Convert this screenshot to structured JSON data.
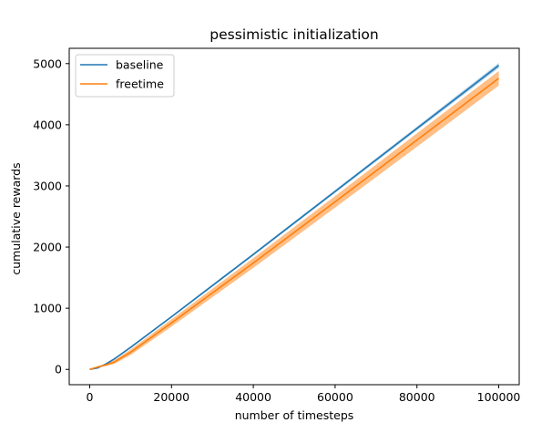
{
  "chart_data": {
    "type": "line",
    "title": "pessimistic initialization",
    "xlabel": "number of timesteps",
    "ylabel": "cumulative rewards",
    "xlim": [
      -5000,
      105000
    ],
    "ylim": [
      -250,
      5250
    ],
    "xticks": [
      0,
      20000,
      40000,
      60000,
      80000,
      100000
    ],
    "xtick_labels": [
      "0",
      "20000",
      "40000",
      "60000",
      "80000",
      "100000"
    ],
    "yticks": [
      0,
      1000,
      2000,
      3000,
      4000,
      5000
    ],
    "ytick_labels": [
      "0",
      "1000",
      "2000",
      "3000",
      "4000",
      "5000"
    ],
    "grid": false,
    "legend_position": "top-left",
    "series": [
      {
        "name": "baseline",
        "color": "#1f77b4",
        "x": [
          0,
          2000,
          4000,
          6000,
          10000,
          20000,
          40000,
          60000,
          80000,
          100000
        ],
        "y": [
          0,
          25,
          90,
          170,
          360,
          860,
          1880,
          2910,
          3940,
          4970
        ],
        "lower": [
          0,
          20,
          80,
          158,
          345,
          845,
          1860,
          2885,
          3910,
          4930
        ],
        "upper": [
          0,
          30,
          100,
          182,
          375,
          875,
          1900,
          2935,
          3970,
          5010
        ]
      },
      {
        "name": "freetime",
        "color": "#ff7f0e",
        "x": [
          0,
          2000,
          4000,
          6000,
          10000,
          20000,
          40000,
          60000,
          80000,
          100000
        ],
        "y": [
          0,
          40,
          75,
          120,
          280,
          760,
          1740,
          2740,
          3750,
          4760
        ],
        "lower": [
          0,
          30,
          55,
          90,
          235,
          700,
          1660,
          2645,
          3640,
          4640
        ],
        "upper": [
          0,
          50,
          95,
          150,
          325,
          820,
          1820,
          2835,
          3860,
          4880
        ]
      }
    ]
  }
}
